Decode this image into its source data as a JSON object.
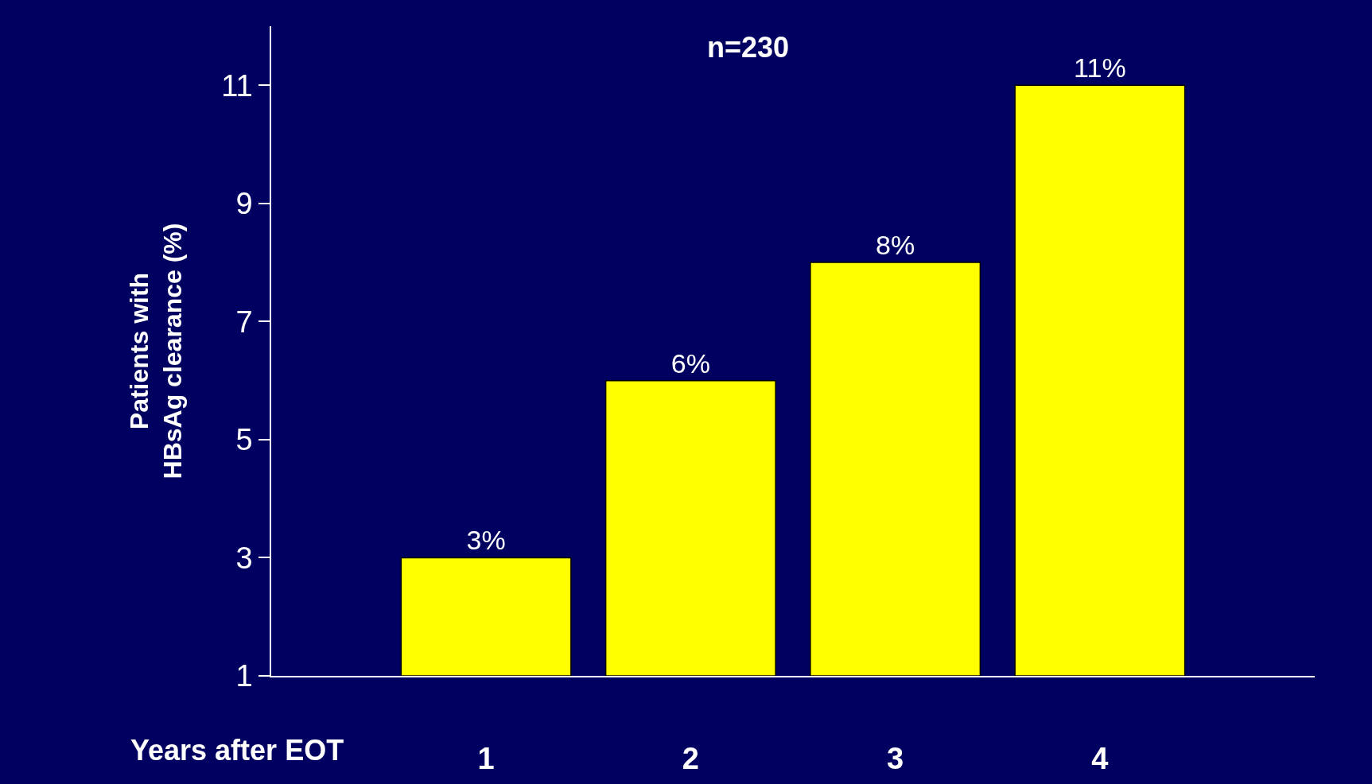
{
  "chart_data": {
    "type": "bar",
    "xlabel": "Years after EOT",
    "ylabel": "Patients with\nHBsAg clearance (%)",
    "categories": [
      "1",
      "2",
      "3",
      "4"
    ],
    "values": [
      3,
      6,
      8,
      11
    ],
    "value_labels": [
      "3%",
      "6%",
      "8%",
      "11%"
    ],
    "color": "#ffff00",
    "ylim": [
      1,
      12
    ],
    "yticks": [
      1,
      3,
      5,
      7,
      9,
      11
    ],
    "grid": false,
    "legend": false,
    "annotations": [
      "n=230"
    ]
  }
}
